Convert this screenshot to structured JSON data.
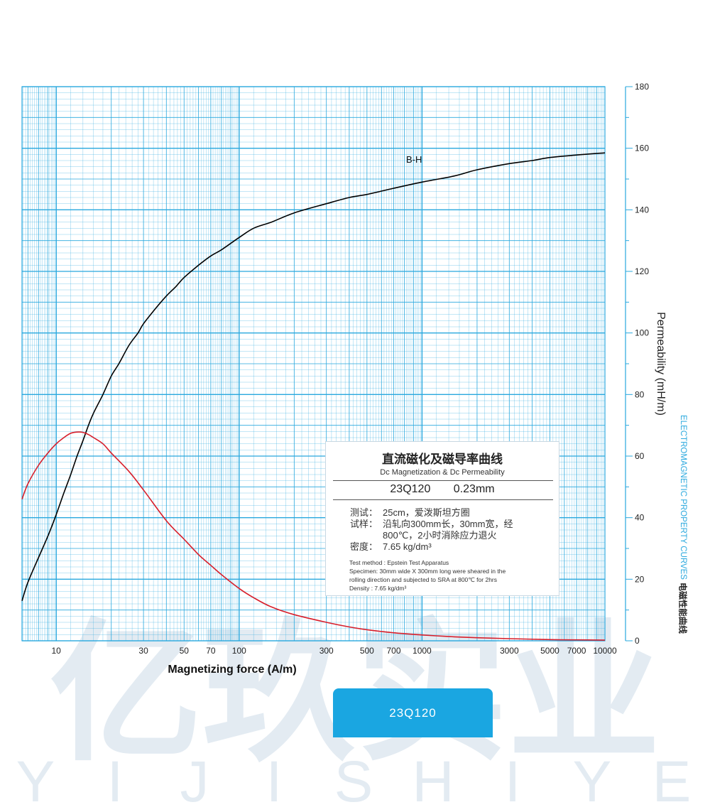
{
  "watermark": {
    "cn": "亿玖实业",
    "letters": [
      "Y",
      "I",
      "J",
      "I",
      "S",
      "H",
      "I",
      "Y",
      "E"
    ]
  },
  "chart_data": {
    "type": "line",
    "x_scale": "log",
    "xlabel": "Magnetizing force (A/m)",
    "ylabel": "Permeability (mH/m)",
    "xlim": [
      6.5,
      10000
    ],
    "ylim": [
      0,
      180
    ],
    "x_ticks": [
      {
        "value": 10,
        "label": "10"
      },
      {
        "value": 30,
        "label": "30"
      },
      {
        "value": 50,
        "label": "50"
      },
      {
        "value": 70,
        "label": "70"
      },
      {
        "value": 100,
        "label": "100"
      },
      {
        "value": 300,
        "label": "300"
      },
      {
        "value": 500,
        "label": "500"
      },
      {
        "value": 700,
        "label": "700"
      },
      {
        "value": 1000,
        "label": "1000"
      },
      {
        "value": 3000,
        "label": "3000"
      },
      {
        "value": 5000,
        "label": "5000"
      },
      {
        "value": 7000,
        "label": "7000"
      },
      {
        "value": 10000,
        "label": "10000"
      }
    ],
    "y_ticks": [
      {
        "value": 0,
        "label": "0"
      },
      {
        "value": 20,
        "label": "20"
      },
      {
        "value": 40,
        "label": "40"
      },
      {
        "value": 60,
        "label": "60"
      },
      {
        "value": 80,
        "label": "80"
      },
      {
        "value": 100,
        "label": "100"
      },
      {
        "value": 120,
        "label": "120"
      },
      {
        "value": 140,
        "label": "140"
      },
      {
        "value": 160,
        "label": "160"
      },
      {
        "value": 180,
        "label": "180"
      }
    ],
    "series": [
      {
        "name": "B-H",
        "color": "#000000",
        "x": [
          6.5,
          7,
          8,
          9,
          10,
          11,
          12,
          13,
          14,
          15,
          16,
          18,
          20,
          22,
          25,
          28,
          30,
          35,
          40,
          45,
          50,
          60,
          70,
          80,
          100,
          120,
          150,
          200,
          300,
          400,
          500,
          700,
          1000,
          1500,
          2000,
          3000,
          4000,
          5000,
          7000,
          10000
        ],
        "values": [
          13,
          19,
          27,
          34,
          41,
          48,
          54,
          60,
          65,
          70,
          74,
          80,
          86,
          90,
          96,
          100,
          103,
          108,
          112,
          115,
          118,
          122,
          125,
          127,
          131,
          134,
          136,
          139,
          142,
          144,
          145,
          147,
          149,
          151,
          153,
          155,
          156,
          157,
          157.8,
          158.5
        ]
      },
      {
        "name": "Permeability",
        "color": "#d81e2a",
        "x": [
          6.5,
          7,
          8,
          9,
          10,
          11,
          12,
          13,
          14,
          15,
          16,
          18,
          20,
          25,
          30,
          40,
          50,
          60,
          70,
          80,
          100,
          120,
          150,
          200,
          300,
          400,
          500,
          700,
          1000,
          1500,
          2000,
          3000,
          5000,
          7000,
          10000
        ],
        "values": [
          46,
          51,
          57,
          61,
          64,
          66,
          67.4,
          67.8,
          67.7,
          67,
          66,
          64,
          61,
          55,
          49,
          39,
          33,
          28,
          24.5,
          21.5,
          17,
          14,
          11,
          8.5,
          6,
          4.5,
          3.6,
          2.6,
          1.9,
          1.3,
          1.0,
          0.7,
          0.4,
          0.3,
          0.2
        ]
      }
    ],
    "annotations": [
      {
        "text": "B-H",
        "x": 2000,
        "y": 156.5
      }
    ]
  },
  "info_box": {
    "title_cn": "直流磁化及磁导率曲线",
    "title_en": "Dc Magnetization & Dc Permeability",
    "grade": "23Q120",
    "thickness": "0.23mm",
    "cn_rows": [
      {
        "label": "测试：",
        "lines": [
          "25cm，爱泼斯坦方圈"
        ]
      },
      {
        "label": "试样：",
        "lines": [
          "沿轧向300mm长，30mm宽，经",
          "800℃，2小时消除应力退火"
        ]
      },
      {
        "label": "密度：",
        "lines": [
          "7.65 kg/dm³"
        ]
      }
    ],
    "en_lines": [
      "Test method : Epstein Test Apparatus",
      "Specimen: 30mm wide X 300mm long were sheared in the",
      "rolling direction and subjected to SRA at 800℃ for 2hrs",
      "Density : 7.65 kg/dm³"
    ]
  },
  "right_axis_title": "Permeability (mH/m)",
  "side_title_en": "ELECTROMAGNETIC PROPERTY CURVES",
  "side_title_cn": "电磁性能曲线",
  "badge_label": "23Q120",
  "colors": {
    "grid": "#29a8de",
    "accent": "#1aa6e1",
    "bh_curve": "#000000",
    "permeability_curve": "#d81e2a",
    "watermark": "#e3ebf2"
  }
}
